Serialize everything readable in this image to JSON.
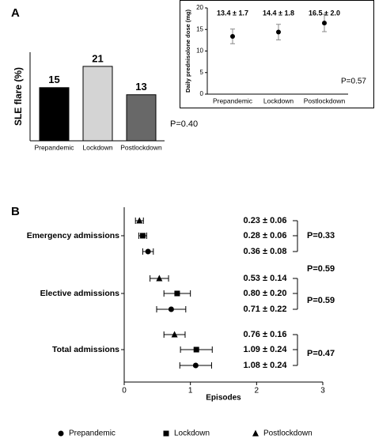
{
  "panel_labels": [
    "A",
    "B"
  ],
  "chart_data": [
    {
      "type": "bar",
      "ylabel": "SLE flare (%)",
      "categories": [
        "Prepandemic",
        "Lockdown",
        "Postlockdown"
      ],
      "values": [
        15,
        21,
        13
      ],
      "colors": [
        "#000000",
        "#d4d4d4",
        "#686868"
      ],
      "ylim": [
        0,
        25
      ],
      "annotation": "P=0.40"
    },
    {
      "type": "errorbar",
      "ylabel": "Daily prednisolone dose (mg)",
      "categories": [
        "Prepandemic",
        "Lockdown",
        "Postlockdown"
      ],
      "values": [
        13.4,
        14.4,
        16.5
      ],
      "errors": [
        1.7,
        1.8,
        2.0
      ],
      "value_labels": [
        "13.4 ± 1.7",
        "14.4 ± 1.8",
        "16.5 ± 2.0"
      ],
      "ylim": [
        0,
        20
      ],
      "yticks": [
        0,
        5,
        10,
        15,
        20
      ],
      "annotation": "P=0.57"
    },
    {
      "type": "dot",
      "xlabel": "Episodes",
      "categories": [
        "Emergency admissions",
        "Elective admissions",
        "Total admissions"
      ],
      "series": [
        {
          "name": "Prepandemic",
          "marker": "circle",
          "values": [
            0.36,
            0.71,
            1.08
          ],
          "errors": [
            0.08,
            0.22,
            0.24
          ],
          "value_labels": [
            "0.36 ± 0.08",
            "0.71 ± 0.22",
            "1.08 ± 0.24"
          ]
        },
        {
          "name": "Lockdown",
          "marker": "square",
          "values": [
            0.28,
            0.8,
            1.09
          ],
          "errors": [
            0.06,
            0.2,
            0.24
          ],
          "value_labels": [
            "0.28 ± 0.06",
            "0.80 ± 0.20",
            "1.09 ± 0.24"
          ]
        },
        {
          "name": "Postlockdown",
          "marker": "triangle",
          "values": [
            0.23,
            0.53,
            0.76
          ],
          "errors": [
            0.06,
            0.14,
            0.16
          ],
          "value_labels": [
            "0.23 ± 0.06",
            "0.53 ± 0.14",
            "0.76 ± 0.16"
          ]
        }
      ],
      "xlim": [
        0,
        3
      ],
      "xticks": [
        0,
        1,
        2,
        3
      ],
      "annotations": [
        "P=0.33",
        "P=0.59",
        "P=0.59",
        "P=0.47"
      ]
    }
  ]
}
